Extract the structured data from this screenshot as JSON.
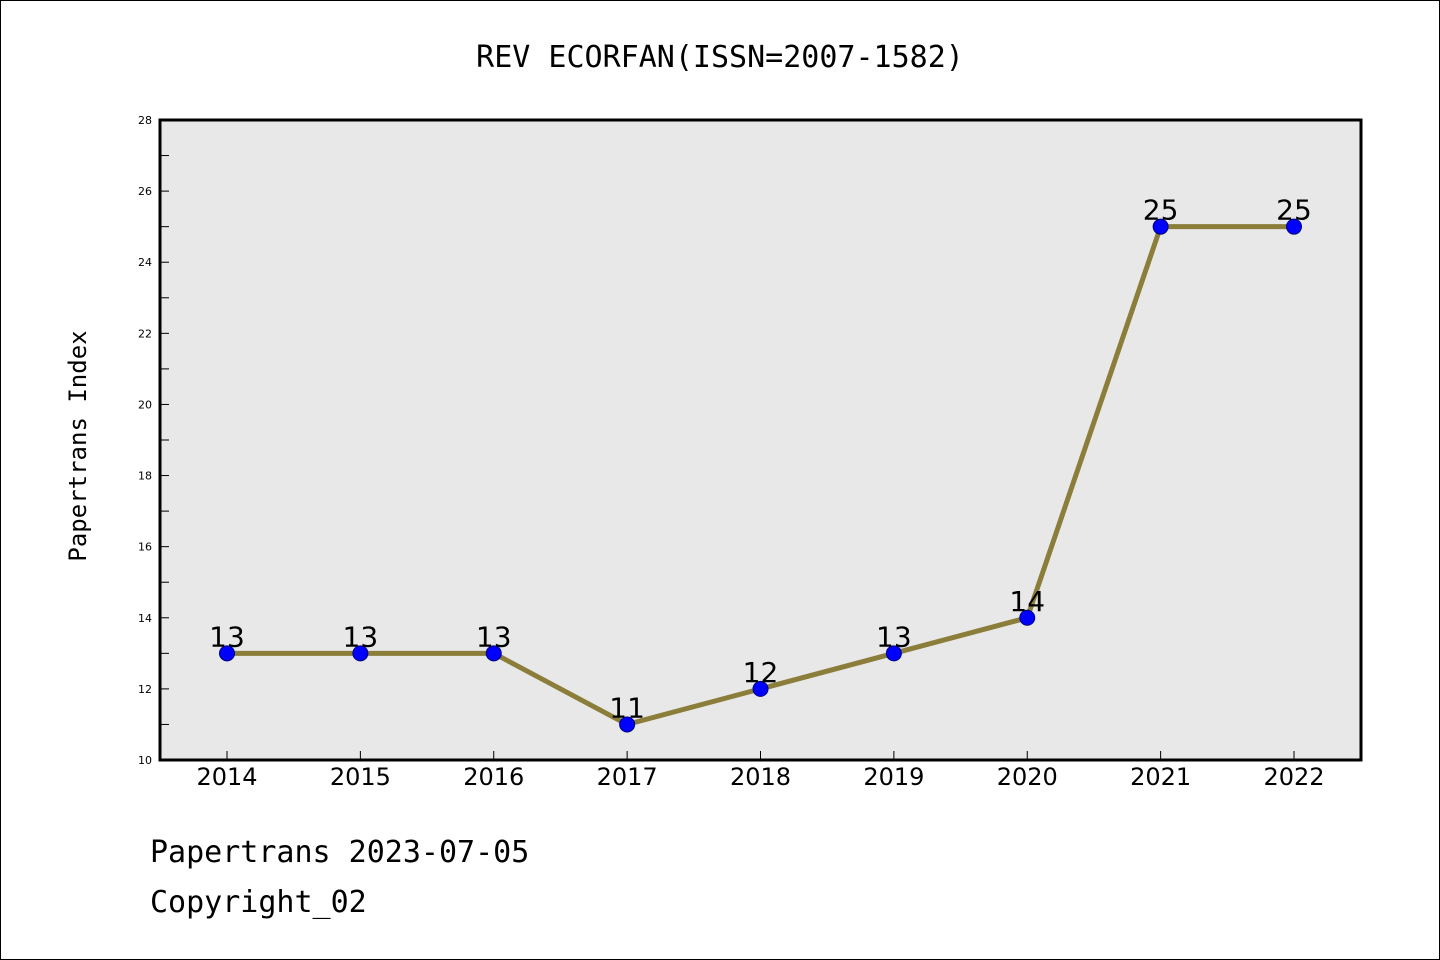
{
  "chart_data": {
    "type": "line",
    "title": "REV ECORFAN(ISSN=2007-1582)",
    "xlabel": "",
    "ylabel": "Papertrans Index",
    "categories": [
      "2014",
      "2015",
      "2016",
      "2017",
      "2018",
      "2019",
      "2020",
      "2021",
      "2022"
    ],
    "values": [
      13,
      13,
      13,
      11,
      12,
      13,
      14,
      25,
      25
    ],
    "data_labels": [
      "13",
      "13",
      "13",
      "11",
      "12",
      "13",
      "14",
      "25",
      "25"
    ],
    "ylim": [
      10,
      28
    ],
    "yticks": [
      10,
      12,
      14,
      16,
      18,
      20,
      22,
      24,
      26,
      28
    ],
    "ytick_labels": [
      "10",
      "12",
      "14",
      "16",
      "18",
      "20",
      "22",
      "24",
      "26",
      "28"
    ],
    "grid": false,
    "legend": "none",
    "colors": {
      "line": "#8B7D3A",
      "marker_fill": "#0000FF",
      "marker_edge": "#000080",
      "plot_background": "#E8E8E8"
    }
  },
  "footer": {
    "date_text": "Papertrans 2023-07-05",
    "copyright_text": "Copyright_02"
  }
}
